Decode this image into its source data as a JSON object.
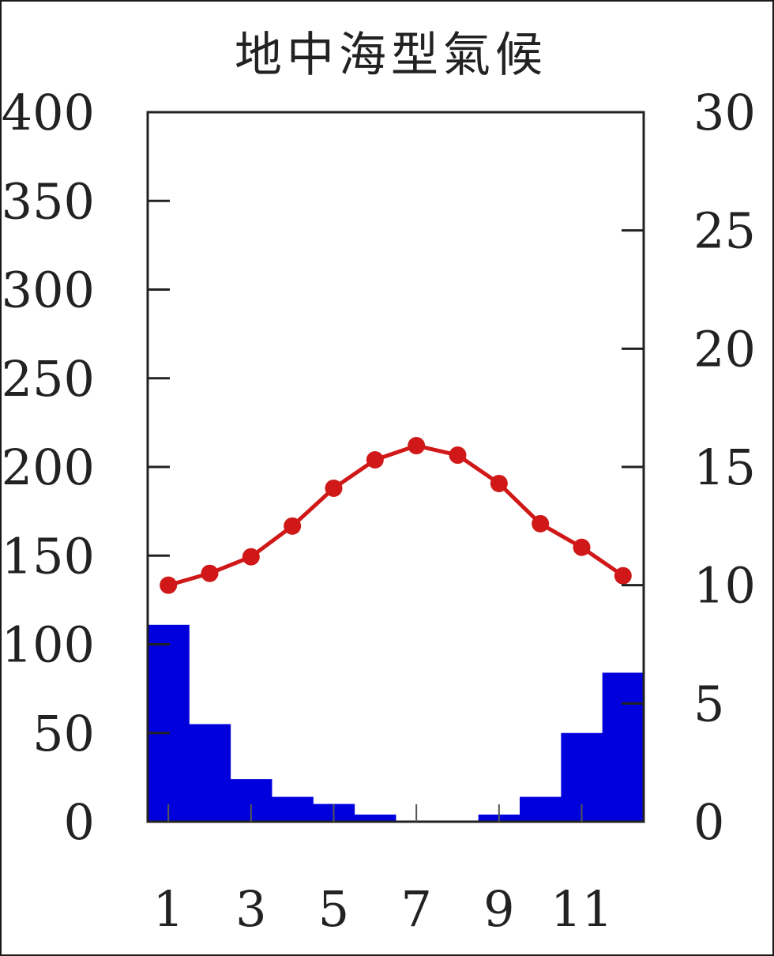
{
  "chart_data": {
    "type": "bar+line",
    "title": "地中海型氣候",
    "months": [
      1,
      2,
      3,
      4,
      5,
      6,
      7,
      8,
      9,
      10,
      11,
      12
    ],
    "x_tick_labels": [
      "1",
      "3",
      "5",
      "7",
      "9",
      "11"
    ],
    "precipitation": {
      "type": "bar",
      "axis": "left",
      "values": [
        111,
        55,
        24,
        14,
        10,
        4,
        0,
        0,
        4,
        14,
        50,
        84
      ],
      "color": "#0000dd"
    },
    "temperature": {
      "type": "line",
      "axis": "right",
      "values": [
        10.0,
        10.5,
        11.2,
        12.5,
        14.1,
        15.3,
        15.9,
        15.5,
        14.3,
        12.6,
        11.6,
        10.4
      ],
      "color": "#d01818"
    },
    "left_axis": {
      "ylim": [
        0,
        400
      ],
      "ticks": [
        "0",
        "50",
        "100",
        "150",
        "200",
        "250",
        "300",
        "350",
        "400"
      ]
    },
    "right_axis": {
      "ylim": [
        0,
        30
      ],
      "ticks": [
        "0",
        "5",
        "10",
        "15",
        "20",
        "25",
        "30"
      ]
    },
    "grid": false
  }
}
